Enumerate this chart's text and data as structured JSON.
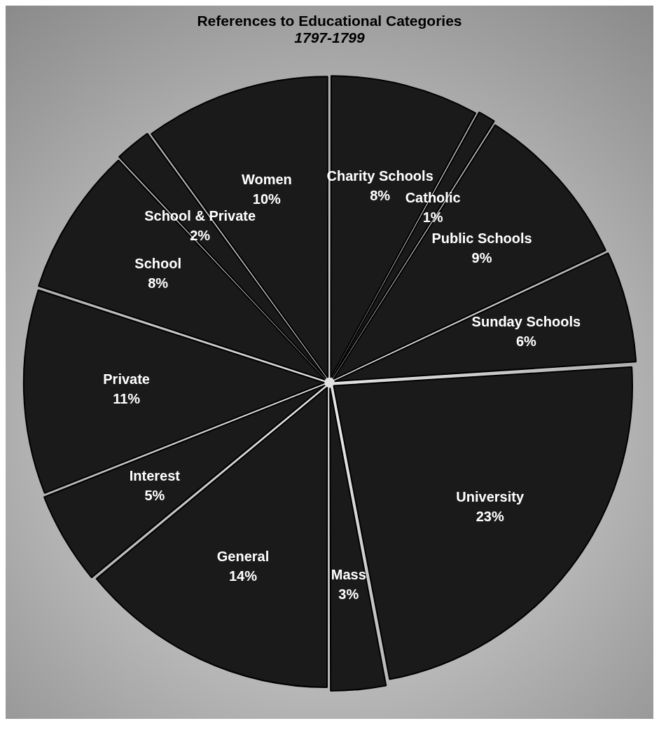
{
  "chart_data": {
    "type": "pie",
    "title": "References to Educational Categories",
    "subtitle": "1797-1799",
    "categories": [
      "Charity Schools",
      "Catholic",
      "Public Schools",
      "Sunday Schools",
      "University",
      "Mass",
      "General",
      "Interest",
      "Private",
      "School",
      "School & Private",
      "Women"
    ],
    "values": [
      8,
      1,
      9,
      6,
      23,
      3,
      14,
      5,
      11,
      8,
      2,
      10
    ],
    "value_labels": [
      "8%",
      "1%",
      "9%",
      "6%",
      "23%",
      "3%",
      "14%",
      "5%",
      "11%",
      "8%",
      "2%",
      "10%"
    ],
    "colors": [
      "#1a1a1a",
      "#1a1a1a",
      "#1a1a1a",
      "#1a1a1a",
      "#1a1a1a",
      "#1a1a1a",
      "#1a1a1a",
      "#1a1a1a",
      "#1a1a1a",
      "#1a1a1a",
      "#1a1a1a",
      "#1a1a1a"
    ],
    "legend": false
  }
}
